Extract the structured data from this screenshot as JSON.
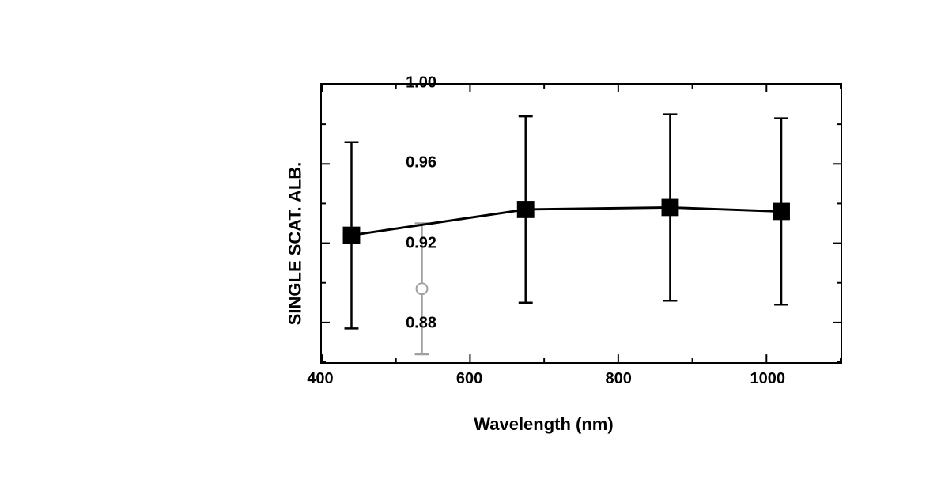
{
  "chart": {
    "type": "scatter-line-errorbar",
    "xlabel": "Wavelength (nm)",
    "ylabel": "SINGLE SCAT. ALB.",
    "xlim": [
      400,
      1100
    ],
    "ylim": [
      0.86,
      1.0
    ],
    "xticks": [
      400,
      600,
      800,
      1000
    ],
    "yticks": [
      0.88,
      0.92,
      0.96,
      1.0
    ],
    "xticks_minor": [
      500,
      700,
      900,
      1100
    ],
    "yticks_minor": [
      0.86,
      0.9,
      0.94,
      0.98
    ],
    "background_color": "#ffffff",
    "axis_color": "#000000",
    "axis_linewidth": 2.5,
    "label_fontsize": 22,
    "tick_fontsize": 20,
    "tick_fontweight": "bold",
    "label_fontweight": "bold",
    "major_tick_length": 10,
    "minor_tick_length": 5,
    "series_main": {
      "color": "#000000",
      "marker": "square",
      "marker_size": 22,
      "line_width": 3,
      "errorbar_width": 2.5,
      "errorbar_cap_width": 18,
      "points": [
        {
          "x": 440,
          "y": 0.924,
          "err": 0.047
        },
        {
          "x": 675,
          "y": 0.937,
          "err": 0.047
        },
        {
          "x": 870,
          "y": 0.938,
          "err": 0.047
        },
        {
          "x": 1020,
          "y": 0.936,
          "err": 0.047
        }
      ]
    },
    "series_secondary": {
      "color": "#a0a0a0",
      "marker": "circle-open",
      "marker_size": 14,
      "marker_stroke": 2,
      "errorbar_width": 2.5,
      "errorbar_cap_width": 18,
      "points": [
        {
          "x": 535,
          "y": 0.897,
          "err": 0.033
        }
      ]
    }
  }
}
